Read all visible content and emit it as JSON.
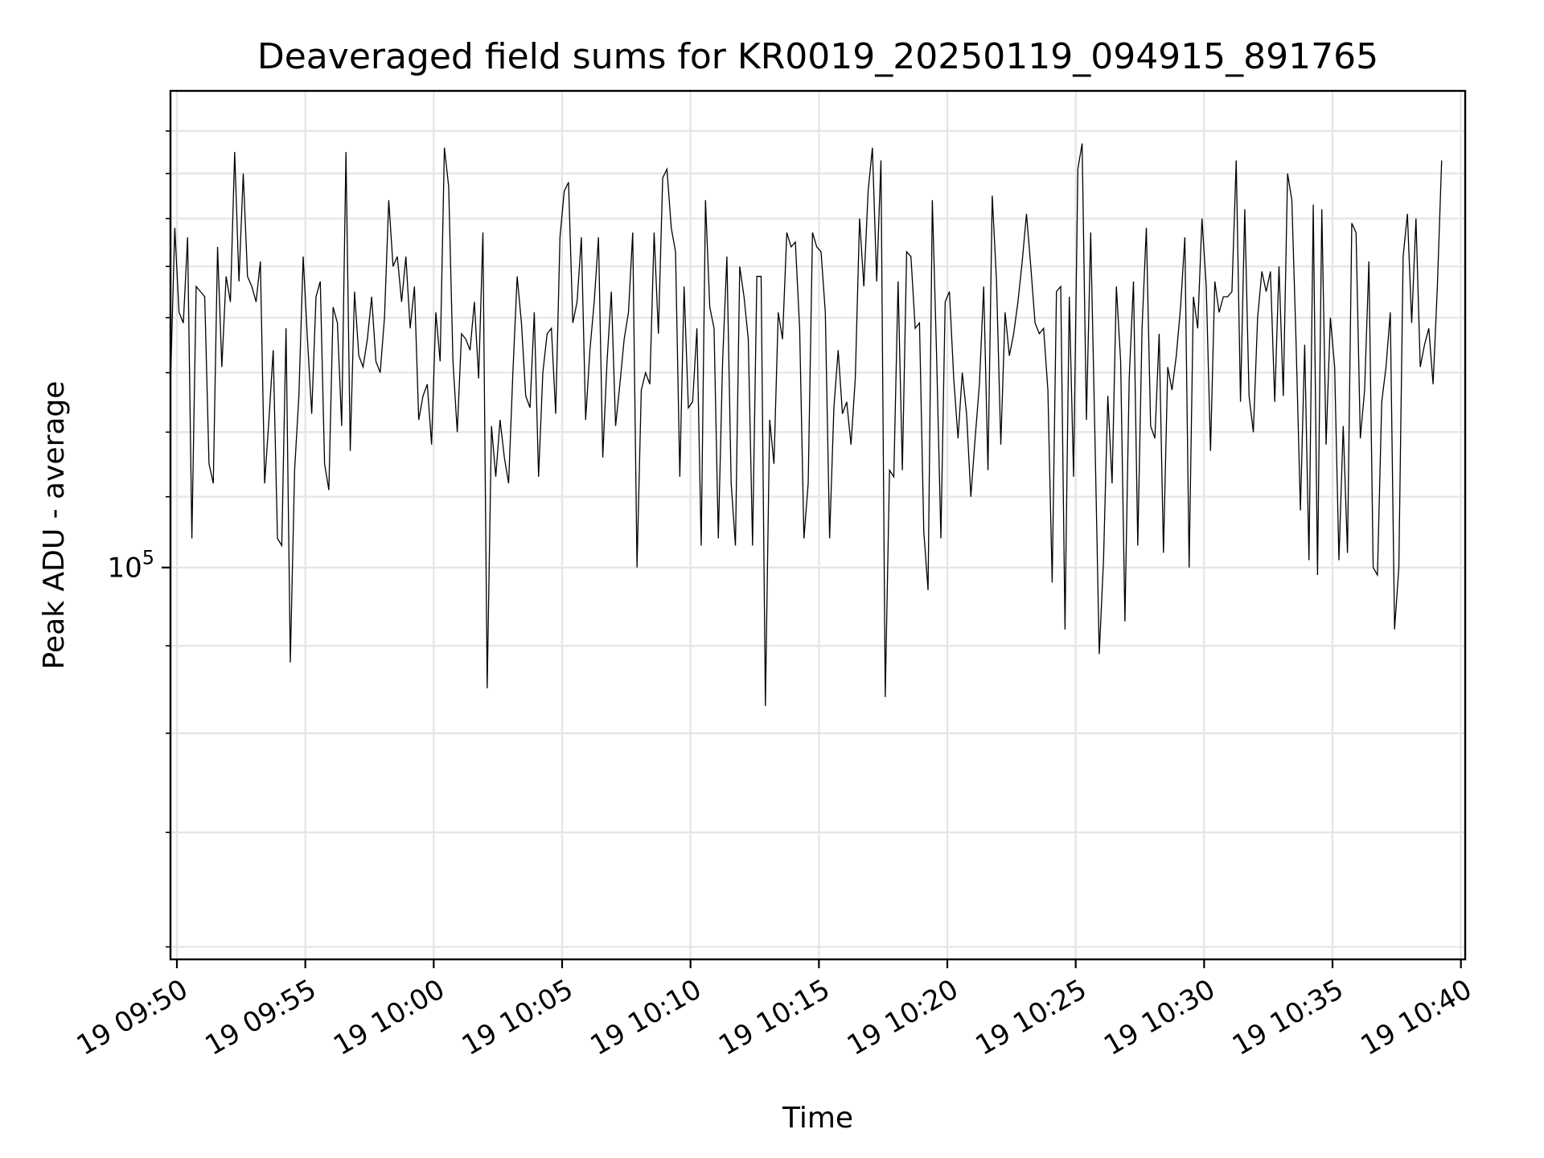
{
  "chart_data": {
    "type": "line",
    "title": "Deaveraged field sums for KR0019_20250119_094915_891765",
    "xlabel": "Time",
    "ylabel": "Peak ADU - average",
    "x_start": "2025-01-19T09:49:45",
    "x_step_seconds": 10,
    "xlim": [
      "2025-01-19T09:49:45",
      "2025-01-19T10:40:10"
    ],
    "ylim": [
      59000,
      190000
    ],
    "yscale": "log",
    "grid": true,
    "x_ticks": [
      "19 09:50",
      "19 09:55",
      "19 10:00",
      "19 10:05",
      "19 10:10",
      "19 10:15",
      "19 10:20",
      "19 10:25",
      "19 10:30",
      "19 10:35",
      "19 10:40"
    ],
    "y_major_ticks": [
      100000
    ],
    "y_major_tick_labels": [
      {
        "base": "10",
        "exp": "5"
      }
    ],
    "y_minor_ticks": [
      60000,
      70000,
      80000,
      90000,
      200000
    ],
    "y_minor_ticks_visible": [
      60000,
      70000,
      80000,
      90000
    ],
    "line_color": "#000000",
    "series": [
      {
        "values": [
          128000,
          158000,
          141000,
          139000,
          156000,
          104000,
          146000,
          145000,
          144000,
          115000,
          112000,
          154000,
          131000,
          148000,
          143000,
          175000,
          147000,
          170000,
          148000,
          146000,
          143000,
          151000,
          112000,
          122000,
          134000,
          104000,
          103000,
          138000,
          88000,
          114000,
          126000,
          152000,
          136000,
          123000,
          144000,
          147000,
          115000,
          111000,
          142000,
          139000,
          121000,
          175000,
          117000,
          145000,
          133000,
          131000,
          136000,
          144000,
          132000,
          130000,
          140000,
          164000,
          150000,
          152000,
          143000,
          152000,
          138000,
          146000,
          122000,
          126000,
          128000,
          118000,
          141000,
          132000,
          176000,
          167000,
          132000,
          120000,
          137000,
          136000,
          134000,
          143000,
          129000,
          157000,
          85000,
          121000,
          113000,
          122000,
          116000,
          112000,
          130000,
          148000,
          139000,
          126000,
          124000,
          141000,
          113000,
          130000,
          137000,
          138000,
          123000,
          156000,
          166000,
          168000,
          139000,
          143000,
          156000,
          122000,
          134000,
          143000,
          156000,
          116000,
          132000,
          145000,
          121000,
          128000,
          136000,
          141000,
          157000,
          100000,
          127000,
          130000,
          128000,
          157000,
          137000,
          169000,
          171000,
          158000,
          153000,
          113000,
          146000,
          124000,
          125000,
          138000,
          103000,
          164000,
          142000,
          138000,
          104000,
          132000,
          152000,
          112000,
          103000,
          150000,
          144000,
          136000,
          103000,
          148000,
          148000,
          83000,
          122000,
          115000,
          141000,
          136000,
          157000,
          154000,
          155000,
          138000,
          104000,
          112000,
          157000,
          154000,
          153000,
          141000,
          104000,
          124000,
          134000,
          123000,
          125000,
          118000,
          129000,
          160000,
          146000,
          166000,
          176000,
          147000,
          173000,
          84000,
          114000,
          113000,
          147000,
          114000,
          153000,
          152000,
          138000,
          139000,
          105000,
          97000,
          164000,
          133000,
          104000,
          143000,
          145000,
          129000,
          119000,
          130000,
          123000,
          110000,
          119000,
          128000,
          146000,
          114000,
          165000,
          147000,
          118000,
          141000,
          133000,
          137000,
          143000,
          151000,
          161000,
          150000,
          139000,
          137000,
          138000,
          127000,
          98000,
          145000,
          146000,
          92000,
          144000,
          113000,
          171000,
          177000,
          122000,
          157000,
          119000,
          89000,
          101000,
          126000,
          112000,
          146000,
          132000,
          93000,
          129000,
          147000,
          103000,
          138000,
          158000,
          121000,
          119000,
          137000,
          102000,
          131000,
          127000,
          133000,
          142000,
          156000,
          100000,
          144000,
          138000,
          160000,
          146000,
          117000,
          147000,
          141000,
          144000,
          144000,
          145000,
          173000,
          125000,
          162000,
          126000,
          120000,
          140000,
          149000,
          145000,
          149000,
          125000,
          150000,
          126000,
          170000,
          164000,
          135000,
          108000,
          135000,
          101000,
          163000,
          99000,
          162000,
          118000,
          140000,
          131000,
          101000,
          121000,
          102000,
          159000,
          157000,
          119000,
          127000,
          151000,
          100000,
          99000,
          125000,
          131000,
          141000,
          92000,
          100000,
          152000,
          161000,
          139000,
          160000,
          131000,
          135000,
          138000,
          128000,
          146000,
          173000
        ]
      }
    ]
  }
}
